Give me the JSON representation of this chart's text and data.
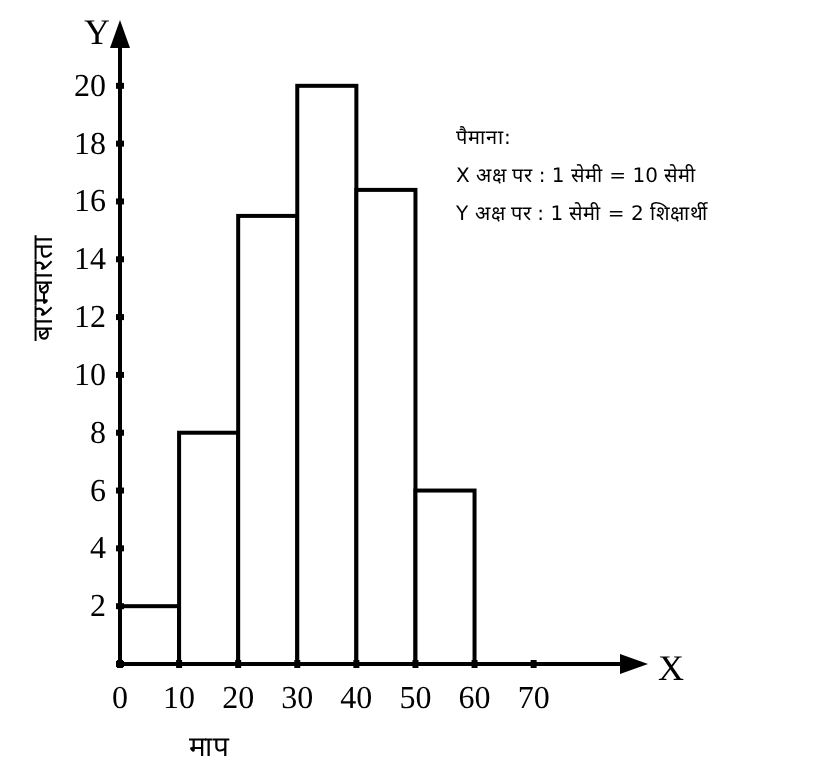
{
  "chart_data": {
    "type": "histogram",
    "xlabel": "माप",
    "ylabel": "बारम्बारता",
    "bins": [
      0,
      10,
      20,
      30,
      40,
      50,
      60
    ],
    "values": [
      2,
      8,
      15.5,
      20,
      16.4,
      6
    ],
    "color": "#ffffff",
    "xlim": [
      0,
      88
    ],
    "ylim": [
      0,
      22
    ],
    "xticks": [
      0,
      10,
      20,
      30,
      40,
      50,
      60,
      70
    ],
    "yticks": [
      {
        "value": 0,
        "label": null
      },
      2,
      4,
      6,
      8,
      10,
      12,
      14,
      16,
      18,
      20
    ],
    "grid": false,
    "annotations": [
      "पैमाना:",
      "X अक्ष पर : 1 सेमी = 10 सेमी",
      "Y अक्ष पर : 1 सेमी = 2 शिक्षार्थी",
      "X",
      "Y"
    ]
  }
}
